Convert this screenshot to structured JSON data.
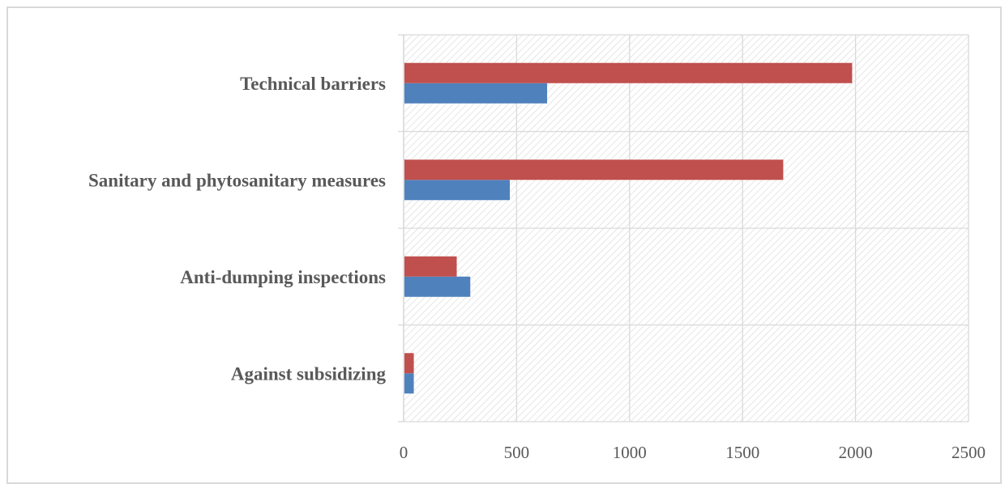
{
  "chart_data": {
    "type": "bar",
    "orientation": "horizontal",
    "categories": [
      "Against subsidizing",
      "Anti-dumping inspections",
      "Sanitary and phytosanitary measures",
      "Technical barriers"
    ],
    "series": [
      {
        "values": [
          45,
          295,
          470,
          635
        ],
        "color": "#4f81bd"
      },
      {
        "values": [
          45,
          235,
          1680,
          1985
        ],
        "color": "#c0504d"
      }
    ],
    "xlim": [
      0,
      2500
    ],
    "x_ticks": [
      "0",
      "500",
      "1000",
      "1500",
      "2000",
      "2500"
    ],
    "grid": true,
    "background": "hatched",
    "legend": "none"
  }
}
